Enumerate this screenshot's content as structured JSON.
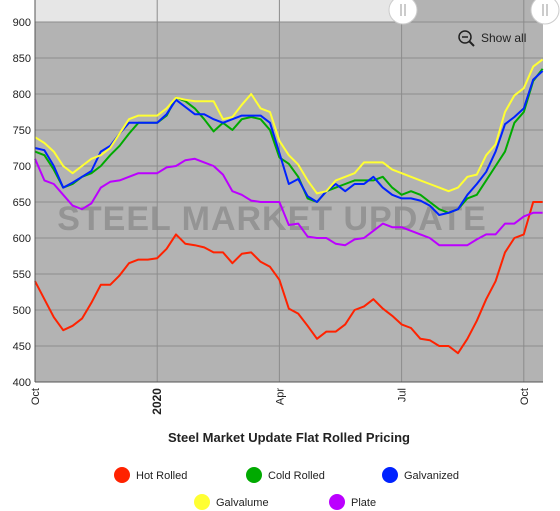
{
  "chart_data": {
    "type": "line",
    "title": "Steel Market Update Flat Rolled Pricing",
    "watermark": "STEEL MARKET UPDATE",
    "reset_button": "Show all",
    "categories": [
      "Oct",
      null,
      null,
      null,
      null,
      null,
      null,
      null,
      null,
      null,
      null,
      null,
      null,
      "2020",
      null,
      null,
      null,
      null,
      null,
      null,
      null,
      null,
      null,
      null,
      null,
      null,
      "Apr",
      null,
      null,
      null,
      null,
      null,
      null,
      null,
      null,
      null,
      null,
      null,
      null,
      "Jul",
      null,
      null,
      null,
      null,
      null,
      null,
      null,
      null,
      null,
      null,
      null,
      null,
      "Oct",
      null,
      null
    ],
    "ylim": [
      400,
      900
    ],
    "yticks": [
      400,
      450,
      500,
      550,
      600,
      650,
      700,
      750,
      800,
      850,
      900
    ],
    "grid": true,
    "legend": "bottom",
    "series": [
      {
        "name": "Hot Rolled",
        "color": "#ff2200",
        "values": [
          540,
          515,
          490,
          472,
          478,
          488,
          510,
          535,
          535,
          548,
          565,
          570,
          570,
          572,
          585,
          605,
          592,
          590,
          587,
          580,
          580,
          565,
          578,
          580,
          567,
          560,
          542,
          502,
          495,
          478,
          460,
          470,
          470,
          480,
          500,
          505,
          515,
          502,
          492,
          480,
          475,
          460,
          458,
          450,
          450,
          440,
          460,
          485,
          515,
          540,
          580,
          600,
          605,
          650,
          650
        ]
      },
      {
        "name": "Cold Rolled",
        "color": "#00aa00",
        "values": [
          720,
          715,
          695,
          670,
          675,
          685,
          690,
          700,
          715,
          728,
          745,
          760,
          760,
          760,
          770,
          795,
          790,
          780,
          765,
          748,
          760,
          750,
          765,
          768,
          765,
          750,
          712,
          703,
          685,
          655,
          650,
          665,
          670,
          675,
          680,
          680,
          680,
          685,
          670,
          660,
          665,
          660,
          650,
          640,
          635,
          640,
          655,
          660,
          680,
          700,
          720,
          760,
          775,
          818,
          835
        ]
      },
      {
        "name": "Galvanized",
        "color": "#0022ff",
        "values": [
          725,
          722,
          700,
          670,
          677,
          685,
          693,
          720,
          728,
          745,
          760,
          760,
          760,
          760,
          772,
          792,
          782,
          772,
          772,
          765,
          760,
          765,
          770,
          770,
          770,
          760,
          718,
          675,
          682,
          658,
          650,
          665,
          675,
          665,
          675,
          675,
          685,
          670,
          660,
          655,
          655,
          652,
          645,
          632,
          635,
          640,
          660,
          675,
          692,
          720,
          758,
          768,
          780,
          820,
          832
        ]
      },
      {
        "name": "Galvalume",
        "color": "#ffff33",
        "values": [
          740,
          732,
          720,
          700,
          690,
          700,
          710,
          715,
          725,
          745,
          765,
          770,
          770,
          770,
          780,
          795,
          792,
          790,
          790,
          790,
          765,
          768,
          785,
          800,
          780,
          775,
          735,
          715,
          702,
          680,
          662,
          665,
          680,
          685,
          690,
          705,
          705,
          705,
          695,
          690,
          685,
          680,
          675,
          670,
          665,
          670,
          685,
          688,
          715,
          730,
          775,
          798,
          808,
          838,
          848
        ]
      },
      {
        "name": "Plate",
        "color": "#bb00ff",
        "values": [
          710,
          680,
          675,
          660,
          645,
          640,
          648,
          670,
          678,
          680,
          685,
          690,
          690,
          690,
          698,
          700,
          708,
          710,
          705,
          700,
          688,
          665,
          660,
          652,
          650,
          650,
          650,
          618,
          620,
          602,
          600,
          600,
          592,
          590,
          598,
          600,
          610,
          620,
          615,
          615,
          610,
          605,
          600,
          590,
          590,
          590,
          590,
          598,
          605,
          605,
          620,
          620,
          630,
          635,
          635
        ]
      }
    ]
  }
}
